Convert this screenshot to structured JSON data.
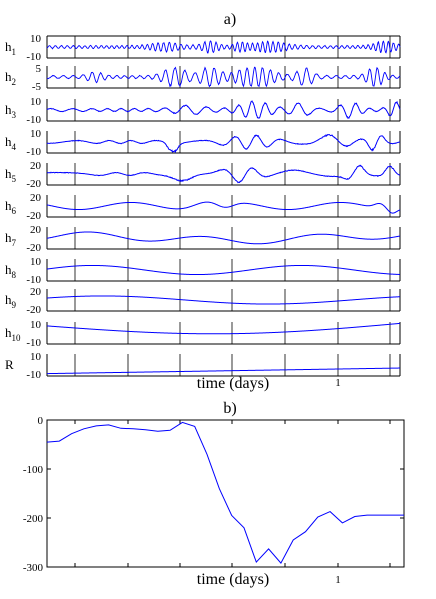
{
  "chart_data": [
    {
      "type": "line",
      "panel_label": "a)",
      "xlabel": "time (days)",
      "x_tick_labels": [
        "1"
      ],
      "rows": [
        {
          "label": "h",
          "sub": "1",
          "ytick_top": "10",
          "ytick_bottom": "-10"
        },
        {
          "label": "h",
          "sub": "2",
          "ytick_top": "5",
          "ytick_bottom": "-5"
        },
        {
          "label": "h",
          "sub": "3",
          "ytick_top": "10",
          "ytick_bottom": "-10"
        },
        {
          "label": "h",
          "sub": "4",
          "ytick_top": "10",
          "ytick_bottom": "-10"
        },
        {
          "label": "h",
          "sub": "5",
          "ytick_top": "20",
          "ytick_bottom": "-20"
        },
        {
          "label": "h",
          "sub": "6",
          "ytick_top": "20",
          "ytick_bottom": "-20"
        },
        {
          "label": "h",
          "sub": "7",
          "ytick_top": "20",
          "ytick_bottom": "-20"
        },
        {
          "label": "h",
          "sub": "8",
          "ytick_top": "10",
          "ytick_bottom": "-10"
        },
        {
          "label": "h",
          "sub": "9",
          "ytick_top": "20",
          "ytick_bottom": "-20"
        },
        {
          "label": "h",
          "sub": "10",
          "ytick_top": "10",
          "ytick_bottom": "-10"
        },
        {
          "label": "R",
          "sub": "",
          "ytick_top": "10",
          "ytick_bottom": "-10"
        }
      ],
      "series_color": "#0000ff"
    },
    {
      "type": "line",
      "panel_label": "b)",
      "xlabel": "time (days)",
      "x_tick_labels": [
        "1"
      ],
      "y_tick_labels": [
        "0",
        "-100",
        "-200",
        "-300"
      ],
      "ylim": [
        -300,
        0
      ],
      "series_color": "#0000ff",
      "x": [
        0,
        1,
        2,
        3,
        4,
        5,
        6,
        7,
        8,
        9,
        10,
        11,
        12,
        13,
        14,
        15,
        16,
        17,
        18,
        19,
        20,
        21,
        22,
        23,
        24,
        25,
        26,
        27,
        28,
        29
      ],
      "values": [
        -45,
        -43,
        -28,
        -18,
        -12,
        -10,
        -17,
        -18,
        -20,
        -23,
        -21,
        -5,
        -13,
        -70,
        -140,
        -195,
        -220,
        -290,
        -263,
        -292,
        -245,
        -228,
        -198,
        -187,
        -210,
        -197,
        -194,
        -194,
        -194,
        -194
      ]
    }
  ]
}
